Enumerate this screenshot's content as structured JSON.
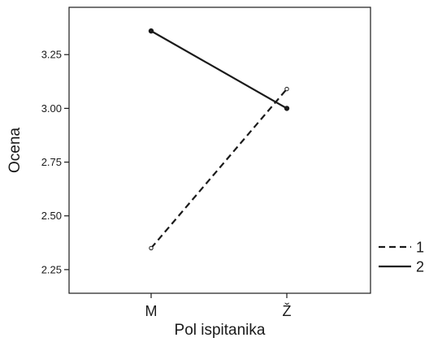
{
  "chart_data": {
    "type": "line",
    "title": "",
    "xlabel": "Pol ispitanika",
    "ylabel": "Ocena",
    "categories": [
      "M",
      "Ž"
    ],
    "ylim": [
      2.14,
      3.47
    ],
    "yticks": [
      2.25,
      2.5,
      2.75,
      3.0,
      3.25
    ],
    "ytick_labels": [
      "2.25",
      "2.50",
      "2.75",
      "3.00",
      "3.25"
    ],
    "grid": false,
    "legend_position": "right",
    "series": [
      {
        "name": "1",
        "values": [
          2.35,
          3.09
        ],
        "style": "dashed",
        "marker": "open-circle",
        "color": "#1a1a1a"
      },
      {
        "name": "2",
        "values": [
          3.36,
          3.0
        ],
        "style": "solid",
        "marker": "filled-circle",
        "color": "#1a1a1a"
      }
    ]
  }
}
